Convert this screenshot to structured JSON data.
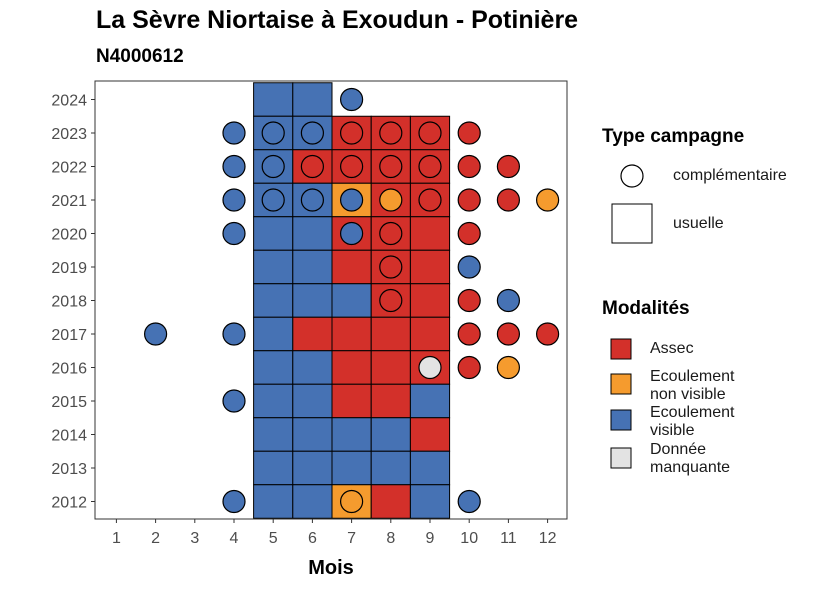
{
  "title": "La Sèvre Niortaise à Exoudun - Potinière",
  "subtitle": "N4000612",
  "chart_data": {
    "type": "heatmap",
    "xlabel": "Mois",
    "ylabel": "",
    "x_ticks": [
      "1",
      "2",
      "3",
      "4",
      "5",
      "6",
      "7",
      "8",
      "9",
      "10",
      "11",
      "12"
    ],
    "y_ticks": [
      "2012",
      "2013",
      "2014",
      "2015",
      "2016",
      "2017",
      "2018",
      "2019",
      "2020",
      "2021",
      "2022",
      "2023",
      "2024"
    ],
    "xlim": [
      0.5,
      12.5
    ],
    "ylim": [
      2011.5,
      2024.5
    ],
    "grid": false,
    "legend_position": "right",
    "colors": {
      "Assec": "#d3302a",
      "Ecoulement non visible": "#f59b2e",
      "Ecoulement visible": "#4672b4",
      "Donnée manquante": "#e3e3e3"
    },
    "usuelle": [
      {
        "year": 2024,
        "month": 5,
        "modalite": "Ecoulement visible"
      },
      {
        "year": 2024,
        "month": 6,
        "modalite": "Ecoulement visible"
      },
      {
        "year": 2023,
        "month": 5,
        "modalite": "Ecoulement visible"
      },
      {
        "year": 2023,
        "month": 6,
        "modalite": "Ecoulement visible"
      },
      {
        "year": 2023,
        "month": 7,
        "modalite": "Assec"
      },
      {
        "year": 2023,
        "month": 8,
        "modalite": "Assec"
      },
      {
        "year": 2023,
        "month": 9,
        "modalite": "Assec"
      },
      {
        "year": 2022,
        "month": 5,
        "modalite": "Ecoulement visible"
      },
      {
        "year": 2022,
        "month": 6,
        "modalite": "Assec"
      },
      {
        "year": 2022,
        "month": 7,
        "modalite": "Assec"
      },
      {
        "year": 2022,
        "month": 8,
        "modalite": "Assec"
      },
      {
        "year": 2022,
        "month": 9,
        "modalite": "Assec"
      },
      {
        "year": 2021,
        "month": 5,
        "modalite": "Ecoulement visible"
      },
      {
        "year": 2021,
        "month": 6,
        "modalite": "Ecoulement visible"
      },
      {
        "year": 2021,
        "month": 7,
        "modalite": "Ecoulement non visible"
      },
      {
        "year": 2021,
        "month": 8,
        "modalite": "Assec"
      },
      {
        "year": 2021,
        "month": 9,
        "modalite": "Assec"
      },
      {
        "year": 2020,
        "month": 5,
        "modalite": "Ecoulement visible"
      },
      {
        "year": 2020,
        "month": 6,
        "modalite": "Ecoulement visible"
      },
      {
        "year": 2020,
        "month": 7,
        "modalite": "Assec"
      },
      {
        "year": 2020,
        "month": 8,
        "modalite": "Assec"
      },
      {
        "year": 2020,
        "month": 9,
        "modalite": "Assec"
      },
      {
        "year": 2019,
        "month": 5,
        "modalite": "Ecoulement visible"
      },
      {
        "year": 2019,
        "month": 6,
        "modalite": "Ecoulement visible"
      },
      {
        "year": 2019,
        "month": 7,
        "modalite": "Assec"
      },
      {
        "year": 2019,
        "month": 8,
        "modalite": "Assec"
      },
      {
        "year": 2019,
        "month": 9,
        "modalite": "Assec"
      },
      {
        "year": 2018,
        "month": 5,
        "modalite": "Ecoulement visible"
      },
      {
        "year": 2018,
        "month": 6,
        "modalite": "Ecoulement visible"
      },
      {
        "year": 2018,
        "month": 7,
        "modalite": "Ecoulement visible"
      },
      {
        "year": 2018,
        "month": 8,
        "modalite": "Assec"
      },
      {
        "year": 2018,
        "month": 9,
        "modalite": "Assec"
      },
      {
        "year": 2017,
        "month": 5,
        "modalite": "Ecoulement visible"
      },
      {
        "year": 2017,
        "month": 6,
        "modalite": "Assec"
      },
      {
        "year": 2017,
        "month": 7,
        "modalite": "Assec"
      },
      {
        "year": 2017,
        "month": 8,
        "modalite": "Assec"
      },
      {
        "year": 2017,
        "month": 9,
        "modalite": "Assec"
      },
      {
        "year": 2016,
        "month": 5,
        "modalite": "Ecoulement visible"
      },
      {
        "year": 2016,
        "month": 6,
        "modalite": "Ecoulement visible"
      },
      {
        "year": 2016,
        "month": 7,
        "modalite": "Assec"
      },
      {
        "year": 2016,
        "month": 8,
        "modalite": "Assec"
      },
      {
        "year": 2016,
        "month": 9,
        "modalite": "Assec"
      },
      {
        "year": 2015,
        "month": 5,
        "modalite": "Ecoulement visible"
      },
      {
        "year": 2015,
        "month": 6,
        "modalite": "Ecoulement visible"
      },
      {
        "year": 2015,
        "month": 7,
        "modalite": "Assec"
      },
      {
        "year": 2015,
        "month": 8,
        "modalite": "Assec"
      },
      {
        "year": 2015,
        "month": 9,
        "modalite": "Ecoulement visible"
      },
      {
        "year": 2014,
        "month": 5,
        "modalite": "Ecoulement visible"
      },
      {
        "year": 2014,
        "month": 6,
        "modalite": "Ecoulement visible"
      },
      {
        "year": 2014,
        "month": 7,
        "modalite": "Ecoulement visible"
      },
      {
        "year": 2014,
        "month": 8,
        "modalite": "Ecoulement visible"
      },
      {
        "year": 2014,
        "month": 9,
        "modalite": "Assec"
      },
      {
        "year": 2013,
        "month": 5,
        "modalite": "Ecoulement visible"
      },
      {
        "year": 2013,
        "month": 6,
        "modalite": "Ecoulement visible"
      },
      {
        "year": 2013,
        "month": 7,
        "modalite": "Ecoulement visible"
      },
      {
        "year": 2013,
        "month": 8,
        "modalite": "Ecoulement visible"
      },
      {
        "year": 2013,
        "month": 9,
        "modalite": "Ecoulement visible"
      },
      {
        "year": 2012,
        "month": 5,
        "modalite": "Ecoulement visible"
      },
      {
        "year": 2012,
        "month": 6,
        "modalite": "Ecoulement visible"
      },
      {
        "year": 2012,
        "month": 7,
        "modalite": "Ecoulement non visible"
      },
      {
        "year": 2012,
        "month": 8,
        "modalite": "Assec"
      },
      {
        "year": 2012,
        "month": 9,
        "modalite": "Ecoulement visible"
      }
    ],
    "complementaire": [
      {
        "year": 2024,
        "month": 7,
        "modalite": "Ecoulement visible"
      },
      {
        "year": 2023,
        "month": 4,
        "modalite": "Ecoulement visible"
      },
      {
        "year": 2023,
        "month": 5,
        "modalite": "Ecoulement visible"
      },
      {
        "year": 2023,
        "month": 6,
        "modalite": "Ecoulement visible"
      },
      {
        "year": 2023,
        "month": 7,
        "modalite": "Assec"
      },
      {
        "year": 2023,
        "month": 8,
        "modalite": "Assec"
      },
      {
        "year": 2023,
        "month": 9,
        "modalite": "Assec"
      },
      {
        "year": 2023,
        "month": 10,
        "modalite": "Assec"
      },
      {
        "year": 2022,
        "month": 4,
        "modalite": "Ecoulement visible"
      },
      {
        "year": 2022,
        "month": 5,
        "modalite": "Ecoulement visible"
      },
      {
        "year": 2022,
        "month": 6,
        "modalite": "Assec"
      },
      {
        "year": 2022,
        "month": 7,
        "modalite": "Assec"
      },
      {
        "year": 2022,
        "month": 8,
        "modalite": "Assec"
      },
      {
        "year": 2022,
        "month": 9,
        "modalite": "Assec"
      },
      {
        "year": 2022,
        "month": 10,
        "modalite": "Assec"
      },
      {
        "year": 2022,
        "month": 11,
        "modalite": "Assec"
      },
      {
        "year": 2021,
        "month": 4,
        "modalite": "Ecoulement visible"
      },
      {
        "year": 2021,
        "month": 5,
        "modalite": "Ecoulement visible"
      },
      {
        "year": 2021,
        "month": 6,
        "modalite": "Ecoulement visible"
      },
      {
        "year": 2021,
        "month": 7,
        "modalite": "Ecoulement visible"
      },
      {
        "year": 2021,
        "month": 8,
        "modalite": "Ecoulement non visible"
      },
      {
        "year": 2021,
        "month": 9,
        "modalite": "Assec"
      },
      {
        "year": 2021,
        "month": 10,
        "modalite": "Assec"
      },
      {
        "year": 2021,
        "month": 11,
        "modalite": "Assec"
      },
      {
        "year": 2021,
        "month": 12,
        "modalite": "Ecoulement non visible"
      },
      {
        "year": 2020,
        "month": 4,
        "modalite": "Ecoulement visible"
      },
      {
        "year": 2020,
        "month": 7,
        "modalite": "Ecoulement visible"
      },
      {
        "year": 2020,
        "month": 8,
        "modalite": "Assec"
      },
      {
        "year": 2020,
        "month": 10,
        "modalite": "Assec"
      },
      {
        "year": 2019,
        "month": 8,
        "modalite": "Assec"
      },
      {
        "year": 2019,
        "month": 10,
        "modalite": "Ecoulement visible"
      },
      {
        "year": 2018,
        "month": 8,
        "modalite": "Assec"
      },
      {
        "year": 2018,
        "month": 10,
        "modalite": "Assec"
      },
      {
        "year": 2018,
        "month": 11,
        "modalite": "Ecoulement visible"
      },
      {
        "year": 2017,
        "month": 2,
        "modalite": "Ecoulement visible"
      },
      {
        "year": 2017,
        "month": 4,
        "modalite": "Ecoulement visible"
      },
      {
        "year": 2017,
        "month": 10,
        "modalite": "Assec"
      },
      {
        "year": 2017,
        "month": 11,
        "modalite": "Assec"
      },
      {
        "year": 2017,
        "month": 12,
        "modalite": "Assec"
      },
      {
        "year": 2016,
        "month": 9,
        "modalite": "Donnée manquante"
      },
      {
        "year": 2016,
        "month": 10,
        "modalite": "Assec"
      },
      {
        "year": 2016,
        "month": 11,
        "modalite": "Ecoulement non visible"
      },
      {
        "year": 2015,
        "month": 4,
        "modalite": "Ecoulement visible"
      },
      {
        "year": 2012,
        "month": 4,
        "modalite": "Ecoulement visible"
      },
      {
        "year": 2012,
        "month": 7,
        "modalite": "Ecoulement non visible"
      },
      {
        "year": 2012,
        "month": 10,
        "modalite": "Ecoulement visible"
      }
    ]
  },
  "legend": {
    "type_title": "Type campagne",
    "type_items": [
      "complémentaire",
      "usuelle"
    ],
    "modal_title": "Modalités",
    "modal_items": [
      {
        "key": "Assec",
        "lines": [
          "Assec"
        ]
      },
      {
        "key": "Ecoulement non visible",
        "lines": [
          "Ecoulement",
          "non visible"
        ]
      },
      {
        "key": "Ecoulement visible",
        "lines": [
          "Ecoulement",
          "visible"
        ]
      },
      {
        "key": "Donnée manquante",
        "lines": [
          "Donnée",
          "manquante"
        ]
      }
    ]
  }
}
